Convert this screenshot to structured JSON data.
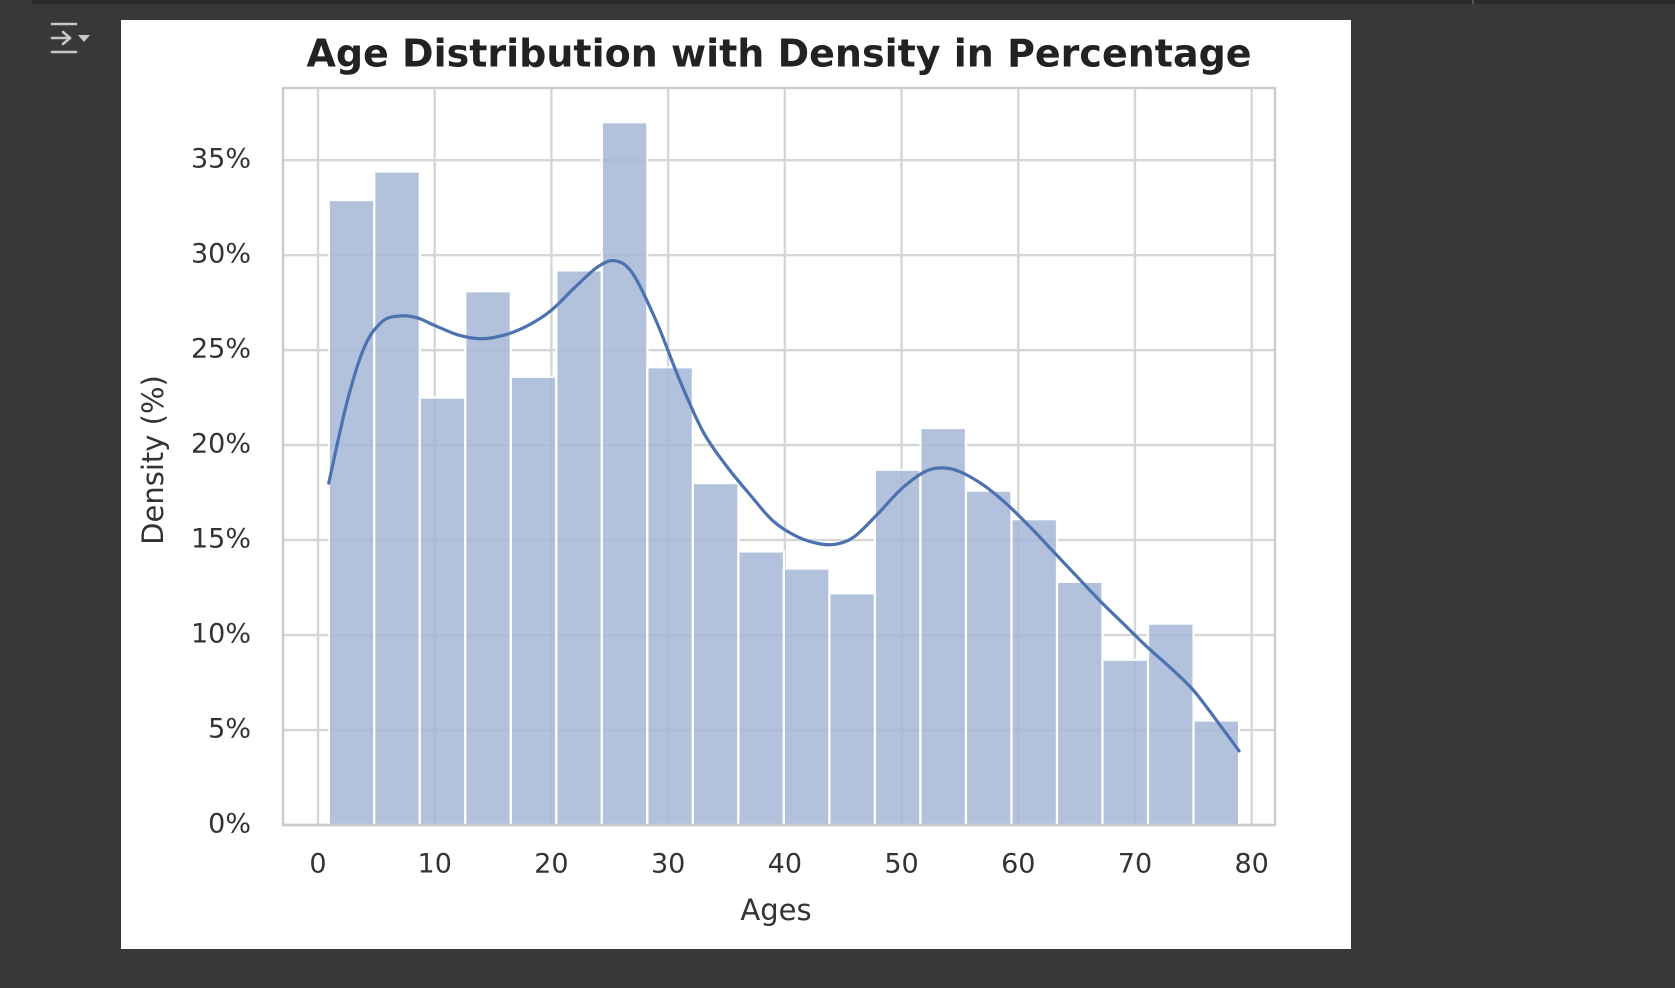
{
  "toolbar": {
    "output_toggle_icon": "output-collapse-icon"
  },
  "chart_data": {
    "type": "bar",
    "subtype": "histogram-with-kde",
    "title": "Age Distribution with Density in Percentage",
    "xlabel": "Ages",
    "ylabel": "Density (%)",
    "xlim": [
      -3,
      82
    ],
    "ylim": [
      0,
      38.8
    ],
    "xticks": [
      0,
      10,
      20,
      30,
      40,
      50,
      60,
      70,
      80
    ],
    "xtick_labels": [
      "0",
      "10",
      "20",
      "30",
      "40",
      "50",
      "60",
      "70",
      "80"
    ],
    "yticks": [
      0,
      5,
      10,
      15,
      20,
      25,
      30,
      35
    ],
    "ytick_labels": [
      "0%",
      "5%",
      "10%",
      "15%",
      "20%",
      "25%",
      "30%",
      "35%"
    ],
    "grid": true,
    "bar_color": "#a5b7d7",
    "line_color": "#4c72b0",
    "bins": [
      {
        "x0": 0.92,
        "x1": 4.82,
        "value": 32.9
      },
      {
        "x0": 4.82,
        "x1": 8.72,
        "value": 34.4
      },
      {
        "x0": 8.72,
        "x1": 12.62,
        "value": 22.5
      },
      {
        "x0": 12.62,
        "x1": 16.52,
        "value": 28.1
      },
      {
        "x0": 16.52,
        "x1": 20.42,
        "value": 23.6
      },
      {
        "x0": 20.42,
        "x1": 24.32,
        "value": 29.2
      },
      {
        "x0": 24.32,
        "x1": 28.22,
        "value": 37.0
      },
      {
        "x0": 28.22,
        "x1": 32.12,
        "value": 24.1
      },
      {
        "x0": 32.12,
        "x1": 36.02,
        "value": 18.0
      },
      {
        "x0": 36.02,
        "x1": 39.92,
        "value": 14.4
      },
      {
        "x0": 39.92,
        "x1": 43.82,
        "value": 13.5
      },
      {
        "x0": 43.82,
        "x1": 47.72,
        "value": 12.2
      },
      {
        "x0": 47.72,
        "x1": 51.62,
        "value": 18.7
      },
      {
        "x0": 51.62,
        "x1": 55.52,
        "value": 20.9
      },
      {
        "x0": 55.52,
        "x1": 59.42,
        "value": 17.6
      },
      {
        "x0": 59.42,
        "x1": 63.32,
        "value": 16.1
      },
      {
        "x0": 63.32,
        "x1": 67.22,
        "value": 12.8
      },
      {
        "x0": 67.22,
        "x1": 71.12,
        "value": 8.7
      },
      {
        "x0": 71.12,
        "x1": 75.02,
        "value": 10.6
      },
      {
        "x0": 75.02,
        "x1": 78.92,
        "value": 5.5
      }
    ],
    "kde": {
      "x": [
        0.92,
        2.5,
        4.0,
        5.5,
        7.0,
        8.5,
        10.0,
        12.0,
        14.0,
        16.0,
        18.0,
        20.0,
        22.0,
        24.0,
        25.5,
        27.0,
        29.0,
        31.0,
        33.0,
        35.0,
        37.0,
        39.0,
        41.0,
        43.0,
        44.5,
        46.0,
        48.0,
        50.0,
        52.0,
        53.5,
        55.0,
        57.0,
        59.0,
        61.0,
        63.0,
        65.0,
        67.0,
        69.0,
        71.0,
        73.0,
        75.0,
        77.0,
        78.92
      ],
      "y": [
        18.0,
        22.3,
        25.2,
        26.5,
        26.8,
        26.7,
        26.3,
        25.8,
        25.6,
        25.8,
        26.3,
        27.1,
        28.3,
        29.4,
        29.7,
        29.0,
        26.5,
        23.4,
        20.7,
        18.9,
        17.4,
        16.0,
        15.2,
        14.8,
        14.8,
        15.2,
        16.4,
        17.7,
        18.6,
        18.8,
        18.6,
        17.9,
        16.9,
        15.7,
        14.4,
        13.1,
        11.8,
        10.6,
        9.4,
        8.3,
        7.1,
        5.5,
        3.9
      ]
    }
  }
}
